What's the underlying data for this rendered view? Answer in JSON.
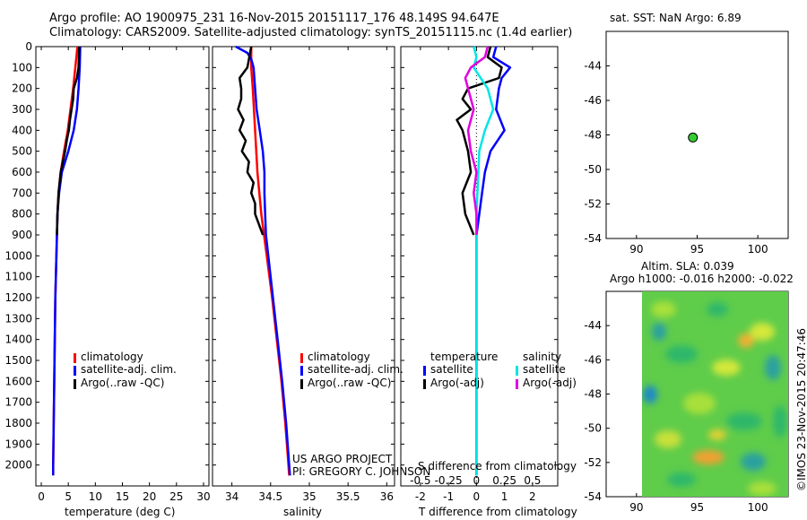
{
  "header": {
    "line1": "Argo profile: AO 1900975_231 16-Nov-2015 20151117_176 48.149S 94.647E",
    "line2": "Climatology: CARS2009. Satellite-adjusted climatology: synTS_20151115.nc (1.4d earlier)"
  },
  "colors": {
    "climatology": "#ff0000",
    "satellite": "#0000ff",
    "argo": "#000000",
    "sal_satellite": "#00e5e5",
    "sal_argo": "#e000e0"
  },
  "depth_ticks": [
    "0",
    "100",
    "200",
    "300",
    "400",
    "500",
    "600",
    "700",
    "800",
    "900",
    "1000",
    "1100",
    "1200",
    "1300",
    "1400",
    "1500",
    "1600",
    "1700",
    "1800",
    "1900",
    "2000"
  ],
  "legend": {
    "climatology": "climatology",
    "satellite_adj": "satellite-adj. clim.",
    "argo_raw": "Argo(..raw -QC)"
  },
  "diff_legend": {
    "temperature": "temperature",
    "salinity": "salinity",
    "satellite": "satellite",
    "argo_adj": "Argo(-adj)"
  },
  "credits": {
    "project": "US ARGO PROJECT",
    "pi": "PI: GREGORY C. JOHNSON"
  },
  "sst_label": "sat. SST: NaN Argo: 6.89",
  "sla_label1": "Altim. SLA: 0.039",
  "sla_label2": "Argo h1000: -0.016 h2000: -0.022",
  "stamp": "©IMOS 23-Nov-2015 20:47:46",
  "chart_data": [
    {
      "type": "line",
      "name_panel": "temperature",
      "xlabel": "temperature (deg C)",
      "xticks": [
        "0",
        "5",
        "10",
        "15",
        "20",
        "25",
        "30"
      ],
      "xlim": [
        -1,
        31
      ],
      "ylim": [
        2100,
        0
      ],
      "series": [
        {
          "name": "climatology",
          "depth": [
            0,
            100,
            200,
            300,
            400,
            500,
            600,
            700,
            800,
            900,
            1000,
            1200,
            1400,
            1600,
            1800,
            2000,
            2050
          ],
          "values": [
            6.7,
            6.3,
            5.9,
            5.4,
            4.9,
            4.2,
            3.6,
            3.2,
            3.0,
            2.9,
            2.8,
            2.6,
            2.5,
            2.4,
            2.3,
            2.2,
            2.2
          ]
        },
        {
          "name": "satellite-adj. clim.",
          "depth": [
            0,
            100,
            200,
            300,
            400,
            500,
            600,
            700,
            800,
            900,
            1000,
            1200,
            1400,
            1600,
            1800,
            2000,
            2050
          ],
          "values": [
            7.2,
            7.1,
            6.9,
            6.6,
            6.0,
            5.0,
            3.8,
            3.3,
            3.0,
            2.9,
            2.8,
            2.6,
            2.5,
            2.4,
            2.3,
            2.2,
            2.2
          ]
        },
        {
          "name": "Argo(..raw -QC)",
          "depth": [
            0,
            100,
            150,
            200,
            250,
            300,
            350,
            400,
            450,
            500,
            600,
            700,
            800,
            900
          ],
          "values": [
            7.0,
            6.9,
            6.6,
            6.0,
            5.9,
            5.6,
            5.3,
            5.1,
            4.7,
            4.4,
            3.6,
            3.2,
            3.0,
            2.9
          ]
        }
      ]
    },
    {
      "type": "line",
      "name_panel": "salinity",
      "xlabel": "salinity",
      "xticks": [
        "34",
        "34.5",
        "35",
        "35.5",
        "36"
      ],
      "xlim": [
        33.75,
        36.1
      ],
      "ylim": [
        2100,
        0
      ],
      "series": [
        {
          "name": "climatology",
          "depth": [
            0,
            100,
            200,
            400,
            600,
            800,
            1000,
            1200,
            1400,
            1600,
            1800,
            2000,
            2050
          ],
          "values": [
            34.25,
            34.25,
            34.27,
            34.3,
            34.33,
            34.38,
            34.45,
            34.52,
            34.58,
            34.64,
            34.69,
            34.73,
            34.74
          ]
        },
        {
          "name": "satellite-adj. clim.",
          "depth": [
            0,
            30,
            60,
            100,
            200,
            300,
            400,
            500,
            600,
            700,
            800,
            900,
            1000,
            1200,
            1400,
            1600,
            1800,
            2000,
            2050
          ],
          "values": [
            34.05,
            34.2,
            34.25,
            34.28,
            34.3,
            34.32,
            34.36,
            34.4,
            34.42,
            34.42,
            34.43,
            34.44,
            34.47,
            34.53,
            34.59,
            34.65,
            34.7,
            34.74,
            34.75
          ]
        },
        {
          "name": "Argo(..raw -QC)",
          "depth": [
            0,
            100,
            150,
            200,
            250,
            300,
            350,
            400,
            450,
            500,
            550,
            600,
            650,
            700,
            750,
            800,
            850,
            900
          ],
          "values": [
            34.25,
            34.2,
            34.1,
            34.12,
            34.12,
            34.08,
            34.15,
            34.1,
            34.18,
            34.13,
            34.22,
            34.2,
            34.28,
            34.25,
            34.3,
            34.3,
            34.35,
            34.4
          ]
        }
      ]
    },
    {
      "type": "line",
      "name_panel": "difference",
      "xlabel": "T difference from climatology",
      "xlabel2": "S difference from climatology",
      "xticks": [
        "-2",
        "-1",
        "0",
        "1",
        "2"
      ],
      "xticks_top": [
        "-0.5",
        "-0.25",
        "0",
        "0.25",
        "0.5"
      ],
      "xlim": [
        -2.7,
        2.9
      ],
      "ylim": [
        2100,
        0
      ],
      "series": [
        {
          "name": "temperature satellite",
          "depth": [
            0,
            50,
            100,
            150,
            200,
            300,
            400,
            500,
            600,
            700,
            800,
            900,
            1000,
            1500,
            2050
          ],
          "values": [
            0.7,
            0.6,
            1.2,
            0.9,
            0.8,
            0.7,
            1.0,
            0.5,
            0.3,
            0.2,
            0.1,
            0.0,
            0.0,
            0.0,
            0.0
          ]
        },
        {
          "name": "temperature Argo(-adj)",
          "depth": [
            0,
            50,
            100,
            150,
            200,
            250,
            300,
            350,
            400,
            500,
            600,
            700,
            800,
            900
          ],
          "values": [
            0.5,
            0.4,
            0.9,
            0.8,
            -0.3,
            -0.5,
            -0.2,
            -0.7,
            -0.5,
            -0.3,
            -0.2,
            -0.5,
            -0.4,
            -0.1
          ]
        },
        {
          "name": "salinity satellite",
          "depth": [
            0,
            50,
            100,
            200,
            300,
            400,
            500,
            800,
            1000,
            1500,
            2050
          ],
          "values": [
            -0.1,
            0.0,
            -0.1,
            0.4,
            0.6,
            0.3,
            0.1,
            0.0,
            0.0,
            0.0,
            0.0
          ]
        },
        {
          "name": "salinity Argo(-adj)",
          "depth": [
            0,
            50,
            100,
            150,
            200,
            300,
            400,
            500,
            600,
            700,
            800,
            900
          ],
          "values": [
            0.4,
            0.3,
            -0.2,
            -0.4,
            -0.3,
            -0.1,
            -0.3,
            -0.2,
            0.0,
            -0.1,
            0.0,
            0.0
          ]
        }
      ]
    },
    {
      "type": "scatter",
      "name_panel": "location",
      "xticks": [
        "90",
        "95",
        "100"
      ],
      "yticks": [
        "-44",
        "-46",
        "-48",
        "-50",
        "-52",
        "-54"
      ],
      "xlim": [
        87.5,
        102.5
      ],
      "ylim": [
        -54,
        -42
      ],
      "points": [
        {
          "x": 94.65,
          "y": -48.15
        }
      ]
    },
    {
      "type": "heatmap",
      "name_panel": "sla",
      "xticks": [
        "90",
        "95",
        "100"
      ],
      "yticks": [
        "-44",
        "-46",
        "-48",
        "-50",
        "-52",
        "-54"
      ],
      "xlim": [
        87.5,
        102.5
      ],
      "ylim": [
        -54,
        -42
      ]
    }
  ]
}
